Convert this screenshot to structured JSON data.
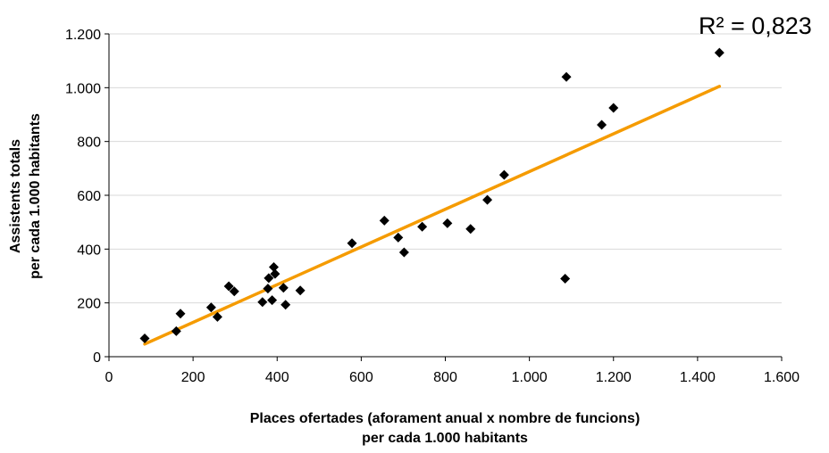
{
  "chart_data": {
    "type": "scatter",
    "title": "",
    "xlabel_lines": [
      "Places ofertades (aforament anual x nombre de funcions)",
      "per cada 1.000 habitants"
    ],
    "ylabel_lines": [
      "Assistents totals",
      "per cada 1.000 habitants"
    ],
    "xlim": [
      0,
      1600
    ],
    "ylim": [
      0,
      1200
    ],
    "x_ticks": [
      0,
      200,
      400,
      600,
      800,
      1000,
      1200,
      1400,
      1600
    ],
    "x_tick_labels": [
      "0",
      "200",
      "400",
      "600",
      "800",
      "1.000",
      "1.200",
      "1.400",
      "1.600"
    ],
    "y_ticks": [
      0,
      200,
      400,
      600,
      800,
      1000,
      1200
    ],
    "y_tick_labels": [
      "0",
      "200",
      "400",
      "600",
      "800",
      "1.000",
      "1.200"
    ],
    "grid": "horizontal",
    "annotation": "R² = 0,823",
    "marker_color": "#000000",
    "trendline_color": "#f59b00",
    "points": [
      {
        "x": 85,
        "y": 68
      },
      {
        "x": 160,
        "y": 95
      },
      {
        "x": 170,
        "y": 160
      },
      {
        "x": 243,
        "y": 183
      },
      {
        "x": 258,
        "y": 148
      },
      {
        "x": 285,
        "y": 262
      },
      {
        "x": 298,
        "y": 243
      },
      {
        "x": 365,
        "y": 203
      },
      {
        "x": 378,
        "y": 253
      },
      {
        "x": 380,
        "y": 292
      },
      {
        "x": 388,
        "y": 210
      },
      {
        "x": 392,
        "y": 333
      },
      {
        "x": 395,
        "y": 308
      },
      {
        "x": 415,
        "y": 256
      },
      {
        "x": 420,
        "y": 193
      },
      {
        "x": 455,
        "y": 246
      },
      {
        "x": 578,
        "y": 422
      },
      {
        "x": 655,
        "y": 506
      },
      {
        "x": 688,
        "y": 443
      },
      {
        "x": 702,
        "y": 388
      },
      {
        "x": 745,
        "y": 483
      },
      {
        "x": 805,
        "y": 496
      },
      {
        "x": 860,
        "y": 475
      },
      {
        "x": 900,
        "y": 583
      },
      {
        "x": 940,
        "y": 676
      },
      {
        "x": 1085,
        "y": 290
      },
      {
        "x": 1088,
        "y": 1040
      },
      {
        "x": 1172,
        "y": 862
      },
      {
        "x": 1200,
        "y": 925
      },
      {
        "x": 1452,
        "y": 1130
      }
    ],
    "trendline": {
      "x": [
        85,
        1452
      ],
      "y": [
        47,
        1005
      ]
    }
  }
}
